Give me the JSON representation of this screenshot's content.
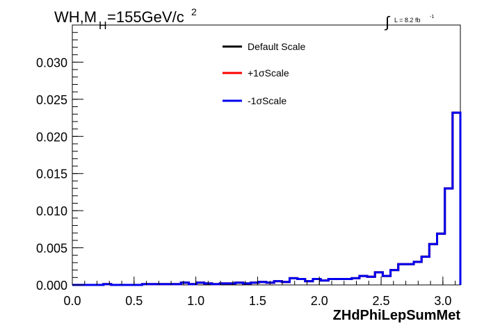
{
  "chart_data": {
    "type": "line",
    "title_main": "WH,M",
    "title_sub": "H",
    "title_rest": "=155GeV/c",
    "title_sup": "2",
    "lumi_label": "L = 8.2 fb",
    "lumi_sup": "-1",
    "integral_symbol": "∫",
    "xlabel": "ZHdPhiLepSumMet",
    "ylabel": "",
    "xlim": [
      0.0,
      3.1416
    ],
    "ylim": [
      0.0,
      0.035
    ],
    "x_ticks": [
      "0.0",
      "0.5",
      "1.0",
      "1.5",
      "2.0",
      "2.5",
      "3.0"
    ],
    "x_tick_values": [
      0.0,
      0.5,
      1.0,
      1.5,
      2.0,
      2.5,
      3.0
    ],
    "y_ticks": [
      "0.000",
      "0.005",
      "0.010",
      "0.015",
      "0.020",
      "0.025",
      "0.030"
    ],
    "y_tick_values": [
      0.0,
      0.005,
      0.01,
      0.015,
      0.02,
      0.025,
      0.03
    ],
    "legend_position": "top-center",
    "bin_edges": [
      0.0,
      0.0628,
      0.1257,
      0.1885,
      0.2513,
      0.3142,
      0.377,
      0.4398,
      0.5027,
      0.5655,
      0.6283,
      0.6912,
      0.754,
      0.8168,
      0.8796,
      0.9425,
      1.0053,
      1.0681,
      1.131,
      1.1938,
      1.2566,
      1.3195,
      1.3823,
      1.4451,
      1.508,
      1.5708,
      1.6336,
      1.6965,
      1.7593,
      1.8221,
      1.885,
      1.9478,
      2.0106,
      2.0735,
      2.1363,
      2.1991,
      2.2619,
      2.3248,
      2.3876,
      2.4504,
      2.5133,
      2.5761,
      2.6389,
      2.7018,
      2.7646,
      2.8274,
      2.8903,
      2.9531,
      3.0159,
      3.0788,
      3.1416
    ],
    "series": [
      {
        "name": "Default Scale",
        "color": "#000000",
        "values": [
          0.0,
          0.0,
          0.0,
          0.0,
          0.0001,
          0.0,
          0.0,
          0.0,
          0.0,
          0.0001,
          0.0001,
          0.0001,
          0.0001,
          0.0001,
          0.0003,
          0.0001,
          0.0003,
          0.0002,
          0.0001,
          0.0002,
          0.0002,
          0.0003,
          0.0002,
          0.0003,
          0.0004,
          0.0003,
          0.0005,
          0.0004,
          0.0009,
          0.0008,
          0.0005,
          0.0008,
          0.0006,
          0.0008,
          0.0008,
          0.0008,
          0.0009,
          0.0012,
          0.0011,
          0.0017,
          0.0012,
          0.002,
          0.0028,
          0.0028,
          0.0031,
          0.0038,
          0.0055,
          0.0069,
          0.013,
          0.0232
        ]
      },
      {
        "name": "+1σScale",
        "color": "#ff0000",
        "values": [
          0.0,
          0.0,
          0.0,
          0.0,
          0.0001,
          0.0,
          0.0,
          0.0,
          0.0,
          0.0001,
          0.0001,
          0.0001,
          0.0001,
          0.0001,
          0.0003,
          0.0001,
          0.0003,
          0.0002,
          0.0001,
          0.0002,
          0.0002,
          0.0003,
          0.0002,
          0.0003,
          0.0004,
          0.0003,
          0.0005,
          0.0004,
          0.0009,
          0.0008,
          0.0005,
          0.0008,
          0.0006,
          0.0008,
          0.0008,
          0.0008,
          0.0009,
          0.0012,
          0.0011,
          0.0017,
          0.0012,
          0.002,
          0.0028,
          0.0028,
          0.0031,
          0.0038,
          0.0055,
          0.0069,
          0.013,
          0.0232
        ]
      },
      {
        "name": "-1σScale",
        "color": "#0000ee",
        "values": [
          0.0,
          0.0,
          0.0,
          0.0,
          0.0001,
          0.0,
          0.0,
          0.0,
          0.0,
          0.0001,
          0.0001,
          0.0001,
          0.0001,
          0.0001,
          0.0003,
          0.0001,
          0.0003,
          0.0002,
          0.0001,
          0.0002,
          0.0002,
          0.0003,
          0.0002,
          0.0003,
          0.0004,
          0.0003,
          0.0005,
          0.0004,
          0.0009,
          0.0008,
          0.0005,
          0.0008,
          0.0006,
          0.0008,
          0.0008,
          0.0008,
          0.0009,
          0.0012,
          0.0011,
          0.0017,
          0.0012,
          0.002,
          0.0028,
          0.0028,
          0.0031,
          0.0038,
          0.0055,
          0.0069,
          0.013,
          0.0232
        ]
      }
    ]
  }
}
